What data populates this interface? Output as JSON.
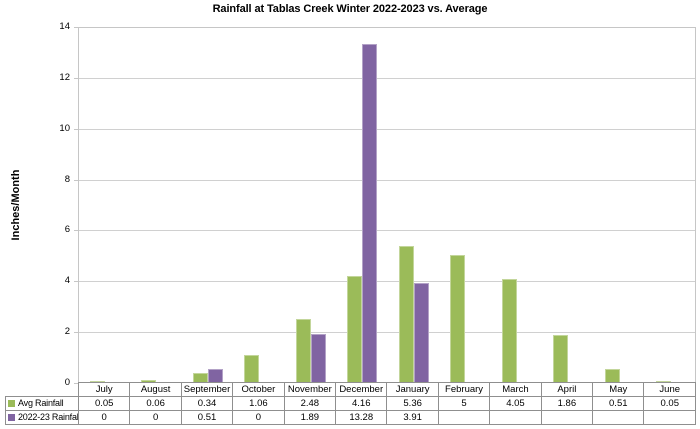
{
  "chart_data": {
    "type": "bar",
    "title": "Rainfall at Tablas Creek Winter 2022-2023 vs. Average",
    "xlabel": "",
    "ylabel": "Inches/Month",
    "categories": [
      "July",
      "August",
      "September",
      "October",
      "November",
      "December",
      "January",
      "February",
      "March",
      "April",
      "May",
      "June"
    ],
    "series": [
      {
        "name": "Avg Rainfall",
        "color": "#9BBB59",
        "border_color": "#C3D69B",
        "values": [
          0.05,
          0.06,
          0.34,
          1.06,
          2.48,
          4.16,
          5.36,
          5,
          4.05,
          1.86,
          0.51,
          0.05
        ],
        "labels": [
          "0.05",
          "0.06",
          "0.34",
          "1.06",
          "2.48",
          "4.16",
          "5.36",
          "5",
          "4.05",
          "1.86",
          "0.51",
          "0.05"
        ]
      },
      {
        "name": "2022-23 Rainfall",
        "color": "#8064A2",
        "border_color": "#B3A2C7",
        "values": [
          0,
          0,
          0.51,
          0,
          1.89,
          13.28,
          3.91,
          null,
          null,
          null,
          null,
          null
        ],
        "labels": [
          "0",
          "0",
          "0.51",
          "0",
          "1.89",
          "13.28",
          "3.91",
          "",
          "",
          "",
          "",
          ""
        ]
      }
    ],
    "ylim": [
      0,
      14
    ],
    "yticks": [
      0,
      2,
      4,
      6,
      8,
      10,
      12,
      14
    ],
    "grid": true,
    "legend_position": "data-table-left",
    "data_table_shown": true
  },
  "style": {
    "gridline_color": "#d0d0d0",
    "axis_border_color": "#c6c6c6",
    "table_border_color": "#8f8f8f",
    "background": "#ffffff"
  }
}
